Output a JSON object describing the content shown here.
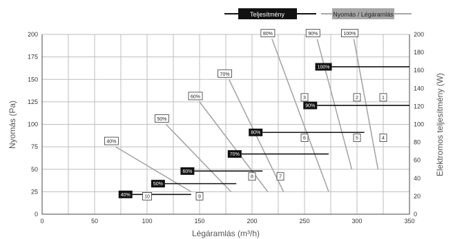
{
  "legend": {
    "power_label": "Teljesítmény",
    "pressure_label": "Nyomás / Légáramlás"
  },
  "colors": {
    "power": "#111111",
    "pressure": "#a6a6a6",
    "grid": "#bdbdbd",
    "axis": "#444444"
  },
  "chart_data": {
    "type": "line",
    "xlabel": "Légáramlás (m³/h)",
    "ylabel": "Nyomás (Pa)",
    "y2label": "Elektromos teljesítmény (W)",
    "xlim": [
      0,
      350
    ],
    "ylim": [
      0,
      200
    ],
    "y2lim": [
      0,
      200
    ],
    "x_ticks": [
      0,
      50,
      100,
      150,
      200,
      250,
      300,
      350
    ],
    "y_ticks": [
      0,
      25,
      50,
      75,
      100,
      125,
      150,
      175,
      200
    ],
    "y2_ticks": [
      0,
      20,
      40,
      60,
      80,
      100,
      120,
      140,
      160,
      180,
      200
    ],
    "grid": true,
    "pressure_series": [
      {
        "name": "40%",
        "x": [
          70,
          142
        ],
        "y": [
          75,
          25
        ]
      },
      {
        "name": "50%",
        "x": [
          118,
          180
        ],
        "y": [
          100,
          25
        ]
      },
      {
        "name": "60%",
        "x": [
          150,
          215
        ],
        "y": [
          125,
          25
        ]
      },
      {
        "name": "70%",
        "x": [
          178,
          230
        ],
        "y": [
          150,
          25
        ]
      },
      {
        "name": "80%",
        "x": [
          219,
          273
        ],
        "y": [
          195,
          25
        ]
      },
      {
        "name": "90%",
        "x": [
          262,
          295
        ],
        "y": [
          195,
          50
        ]
      },
      {
        "name": "100%",
        "x": [
          297,
          320
        ],
        "y": [
          195,
          50
        ]
      }
    ],
    "power_series": [
      {
        "name": "40%",
        "x": [
          86,
          142
        ],
        "y": [
          22,
          22
        ]
      },
      {
        "name": "50%",
        "x": [
          117,
          185
        ],
        "y": [
          34,
          34
        ]
      },
      {
        "name": "60%",
        "x": [
          145,
          210
        ],
        "y": [
          48,
          48
        ]
      },
      {
        "name": "70%",
        "x": [
          190,
          273
        ],
        "y": [
          67,
          67
        ]
      },
      {
        "name": "80%",
        "x": [
          210,
          307
        ],
        "y": [
          91,
          91
        ]
      },
      {
        "name": "90%",
        "x": [
          262,
          350
        ],
        "y": [
          121,
          121
        ]
      },
      {
        "name": "100%",
        "x": [
          276,
          350
        ],
        "y": [
          164,
          164
        ]
      }
    ],
    "operating_points": [
      {
        "label": "1",
        "x": 325,
        "y": 130
      },
      {
        "label": "2",
        "x": 300,
        "y": 130
      },
      {
        "label": "3",
        "x": 250,
        "y": 130
      },
      {
        "label": "4",
        "x": 325,
        "y": 85
      },
      {
        "label": "5",
        "x": 300,
        "y": 85
      },
      {
        "label": "6",
        "x": 250,
        "y": 85
      },
      {
        "label": "7",
        "x": 227,
        "y": 42
      },
      {
        "label": "8",
        "x": 200,
        "y": 42
      },
      {
        "label": "9",
        "x": 150,
        "y": 20
      },
      {
        "label": "10",
        "x": 100,
        "y": 20
      }
    ]
  }
}
